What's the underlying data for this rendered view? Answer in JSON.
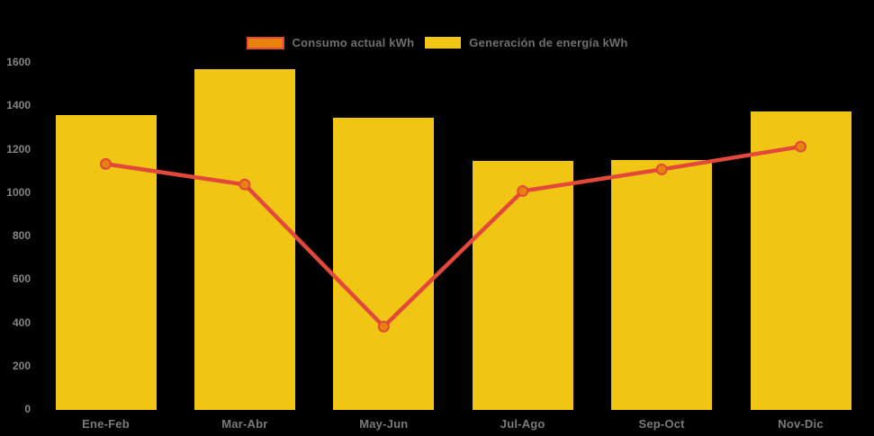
{
  "chart_data": {
    "type": "bar",
    "title": "",
    "categories": [
      "Ene-Feb",
      "Mar-Abr",
      "May-Jun",
      "Jul-Ago",
      "Sep-Oct",
      "Nov-Dic"
    ],
    "series": [
      {
        "name": "Consumo actual kWh",
        "type": "line",
        "values": [
          1130,
          1035,
          380,
          1005,
          1105,
          1210
        ],
        "color": "#E2493B",
        "marker_color": "#E8820D"
      },
      {
        "name": "Generación de energía kWh",
        "type": "bar",
        "values": [
          1355,
          1565,
          1345,
          1145,
          1150,
          1370
        ],
        "color": "#F0C514"
      }
    ],
    "xlabel": "",
    "ylabel": "",
    "ylim": [
      0,
      1600
    ],
    "yticks": [
      0,
      200,
      400,
      600,
      800,
      1000,
      1200,
      1400,
      1600
    ],
    "grid": false,
    "legend_position": "top",
    "background": "#000000",
    "tick_label_color": "#858585",
    "axis_label_color": "#7A7A7A",
    "legend_text_color": "#6F6F6F"
  }
}
